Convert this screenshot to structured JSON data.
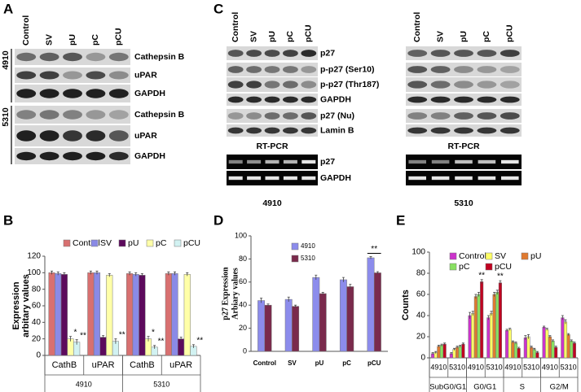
{
  "panel_a": {
    "label": "A",
    "lanes": [
      "Control",
      "SV",
      "pU",
      "pC",
      "pCU"
    ],
    "blocks": [
      {
        "cell_line": "4910",
        "rows": [
          "Cathepsin B",
          "uPAR",
          "GAPDH"
        ]
      },
      {
        "cell_line": "5310",
        "rows": [
          "Cathepsin B",
          "uPAR",
          "GAPDH"
        ]
      }
    ]
  },
  "panel_c": {
    "label": "C",
    "lanes": [
      "Control",
      "SV",
      "pU",
      "pC",
      "pCU"
    ],
    "western_rows": [
      "p27",
      "p-p27 (Ser10)",
      "p-p27 (Thr187)",
      "GAPDH",
      "p27 (Nu)",
      "Lamin B"
    ],
    "rt_pcr_title": "RT-PCR",
    "rt_pcr_rows": [
      "p27",
      "GAPDH"
    ],
    "cell_lines": [
      "4910",
      "5310"
    ]
  },
  "chart_data": [
    {
      "type": "bar",
      "title": "B",
      "ylabel": [
        "Expression",
        "arbitary values"
      ],
      "categories": [
        "CathB",
        "uPAR",
        "CathB",
        "uPAR"
      ],
      "group_labels": [
        "4910",
        "5310"
      ],
      "series": [
        {
          "name": "Control",
          "color": "#d87070",
          "values": [
            100,
            100,
            99,
            99
          ],
          "errors": [
            2,
            2,
            2,
            2
          ],
          "significance": [
            null,
            null,
            null,
            null
          ]
        },
        {
          "name": "SV",
          "color": "#8a8ae6",
          "values": [
            99,
            100,
            98,
            99
          ],
          "errors": [
            2,
            2,
            2,
            2
          ],
          "significance": [
            null,
            null,
            null,
            null
          ]
        },
        {
          "name": "pU",
          "color": "#5c0a5c",
          "values": [
            98,
            22,
            97,
            20
          ],
          "errors": [
            2,
            2,
            2,
            2
          ],
          "significance": [
            null,
            "*",
            null,
            "*"
          ]
        },
        {
          "name": "pC",
          "color": "#ffffa8",
          "values": [
            20,
            97,
            20,
            98
          ],
          "errors": [
            3,
            2,
            3,
            2
          ],
          "significance": [
            "*",
            null,
            "*",
            null
          ]
        },
        {
          "name": "pCU",
          "color": "#d2f2f2",
          "values": [
            16,
            17,
            10,
            11
          ],
          "errors": [
            3,
            3,
            2,
            2
          ],
          "significance": [
            "**",
            "**",
            "**",
            "**"
          ]
        }
      ],
      "ylim": [
        0,
        120
      ],
      "yticks": [
        0,
        20,
        40,
        60,
        80,
        100,
        120
      ],
      "legend": "top"
    },
    {
      "type": "bar",
      "title": "D",
      "ylabel": [
        "p27 Expression",
        "Arbiary values"
      ],
      "categories": [
        "Control",
        "SV",
        "pU",
        "pC",
        "pCU"
      ],
      "series": [
        {
          "name": "4910",
          "color": "#8c8cec",
          "values": [
            44,
            45,
            64,
            62,
            81
          ],
          "errors": [
            2,
            2,
            2,
            2,
            1
          ],
          "significance": [
            null,
            null,
            null,
            null,
            "**"
          ]
        },
        {
          "name": "5310",
          "color": "#7a2a4c",
          "values": [
            40,
            39,
            50,
            56,
            68
          ],
          "errors": [
            1,
            1,
            1,
            2,
            1
          ],
          "significance": [
            null,
            null,
            null,
            null,
            null
          ]
        }
      ],
      "ylim": [
        0,
        100
      ],
      "yticks": [
        0,
        20,
        40,
        60,
        80,
        100
      ],
      "legend": "top-left"
    },
    {
      "type": "bar",
      "title": "E",
      "ylabel": [
        "Counts"
      ],
      "categories": [
        "4910",
        "5310",
        "4910",
        "5310",
        "4910",
        "5310",
        "4910",
        "5310"
      ],
      "group_labels": [
        "SubG0/G1",
        "G0/G1",
        "S",
        "G2/M"
      ],
      "series": [
        {
          "name": "Control",
          "color": "#cc33cc",
          "values": [
            4,
            4,
            40,
            38,
            26,
            19,
            29,
            38
          ],
          "errors": [
            1,
            1,
            3,
            2,
            1,
            2,
            1,
            2
          ],
          "significance": [
            null,
            null,
            null,
            null,
            null,
            null,
            null,
            null
          ]
        },
        {
          "name": "SV",
          "color": "#ffff66",
          "values": [
            5,
            8,
            42,
            42,
            27,
            20,
            27,
            34
          ],
          "errors": [
            1,
            1,
            2,
            2,
            1,
            2,
            1,
            2
          ],
          "significance": [
            null,
            null,
            null,
            null,
            null,
            null,
            null,
            null
          ]
        },
        {
          "name": "pU",
          "color": "#e07a30",
          "values": [
            11,
            10,
            58,
            60,
            15,
            10,
            20,
            22
          ],
          "errors": [
            1,
            1,
            2,
            2,
            1,
            1,
            1,
            1
          ],
          "significance": [
            null,
            null,
            null,
            null,
            null,
            null,
            null,
            null
          ]
        },
        {
          "name": "pC",
          "color": "#88e060",
          "values": [
            12,
            11,
            60,
            62,
            14,
            8,
            16,
            16
          ],
          "errors": [
            1,
            1,
            2,
            2,
            1,
            1,
            1,
            1
          ],
          "significance": [
            null,
            null,
            null,
            null,
            null,
            null,
            null,
            null
          ]
        },
        {
          "name": "pCU",
          "color": "#c00020",
          "values": [
            13,
            13,
            72,
            71,
            9,
            5,
            10,
            14
          ],
          "errors": [
            1,
            1,
            2,
            2,
            1,
            1,
            1,
            1
          ],
          "significance": [
            null,
            null,
            "**",
            "**",
            null,
            null,
            null,
            null
          ]
        }
      ],
      "ylim": [
        0,
        100
      ],
      "yticks": [
        0,
        20,
        40,
        60,
        80,
        100
      ],
      "legend": "top"
    }
  ]
}
